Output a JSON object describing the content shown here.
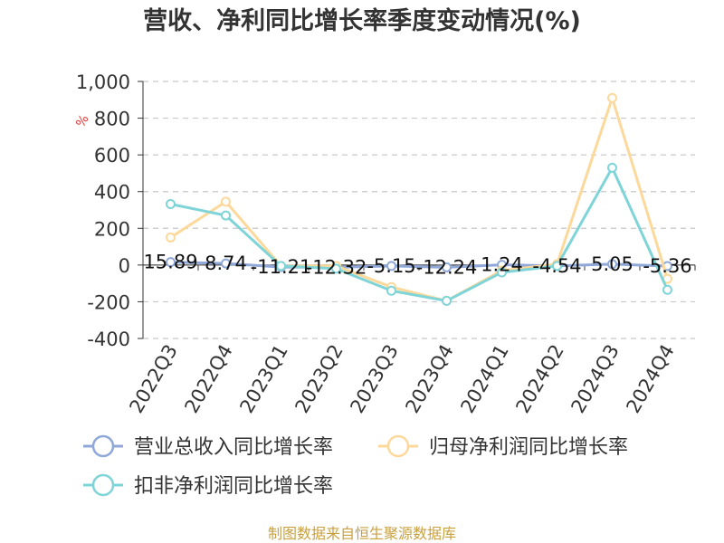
{
  "chart_data": {
    "type": "line",
    "title": "营收、净利同比增长率季度变动情况(%)",
    "unit_label": "%",
    "categories": [
      "2022Q3",
      "2022Q4",
      "2023Q1",
      "2023Q2",
      "2023Q3",
      "2023Q4",
      "2024Q1",
      "2024Q2",
      "2024Q3",
      "2024Q4"
    ],
    "y_ticks": [
      "1,000",
      "800",
      "600",
      "400",
      "200",
      "0",
      "-200",
      "-400"
    ],
    "ylim": [
      -400,
      1000
    ],
    "grid": true,
    "legend_position": "bottom",
    "series": [
      {
        "name": "营业总收入同比增长率",
        "color": "#8fa8d8",
        "values": [
          15.89,
          8.74,
          -11.21,
          -12.32,
          -5.15,
          -12.24,
          1.24,
          -4.54,
          5.05,
          -5.36
        ],
        "labels": [
          "15.89",
          "8.74",
          "-11.21",
          "-12.32",
          "-5.15",
          "-12.24",
          "1.24",
          "-4.54",
          "5.05",
          "-5.36"
        ]
      },
      {
        "name": "归母净利润同比增长率",
        "color": "#fcd99a",
        "values": [
          150,
          345,
          -5,
          -5,
          -120,
          -195,
          -30,
          5,
          910,
          -75
        ]
      },
      {
        "name": "扣非净利润同比增长率",
        "color": "#7fd4d8",
        "values": [
          332,
          270,
          -5,
          -20,
          -140,
          -195,
          -40,
          -5,
          530,
          -135
        ]
      }
    ]
  },
  "source": "制图数据来自恒生聚源数据库"
}
